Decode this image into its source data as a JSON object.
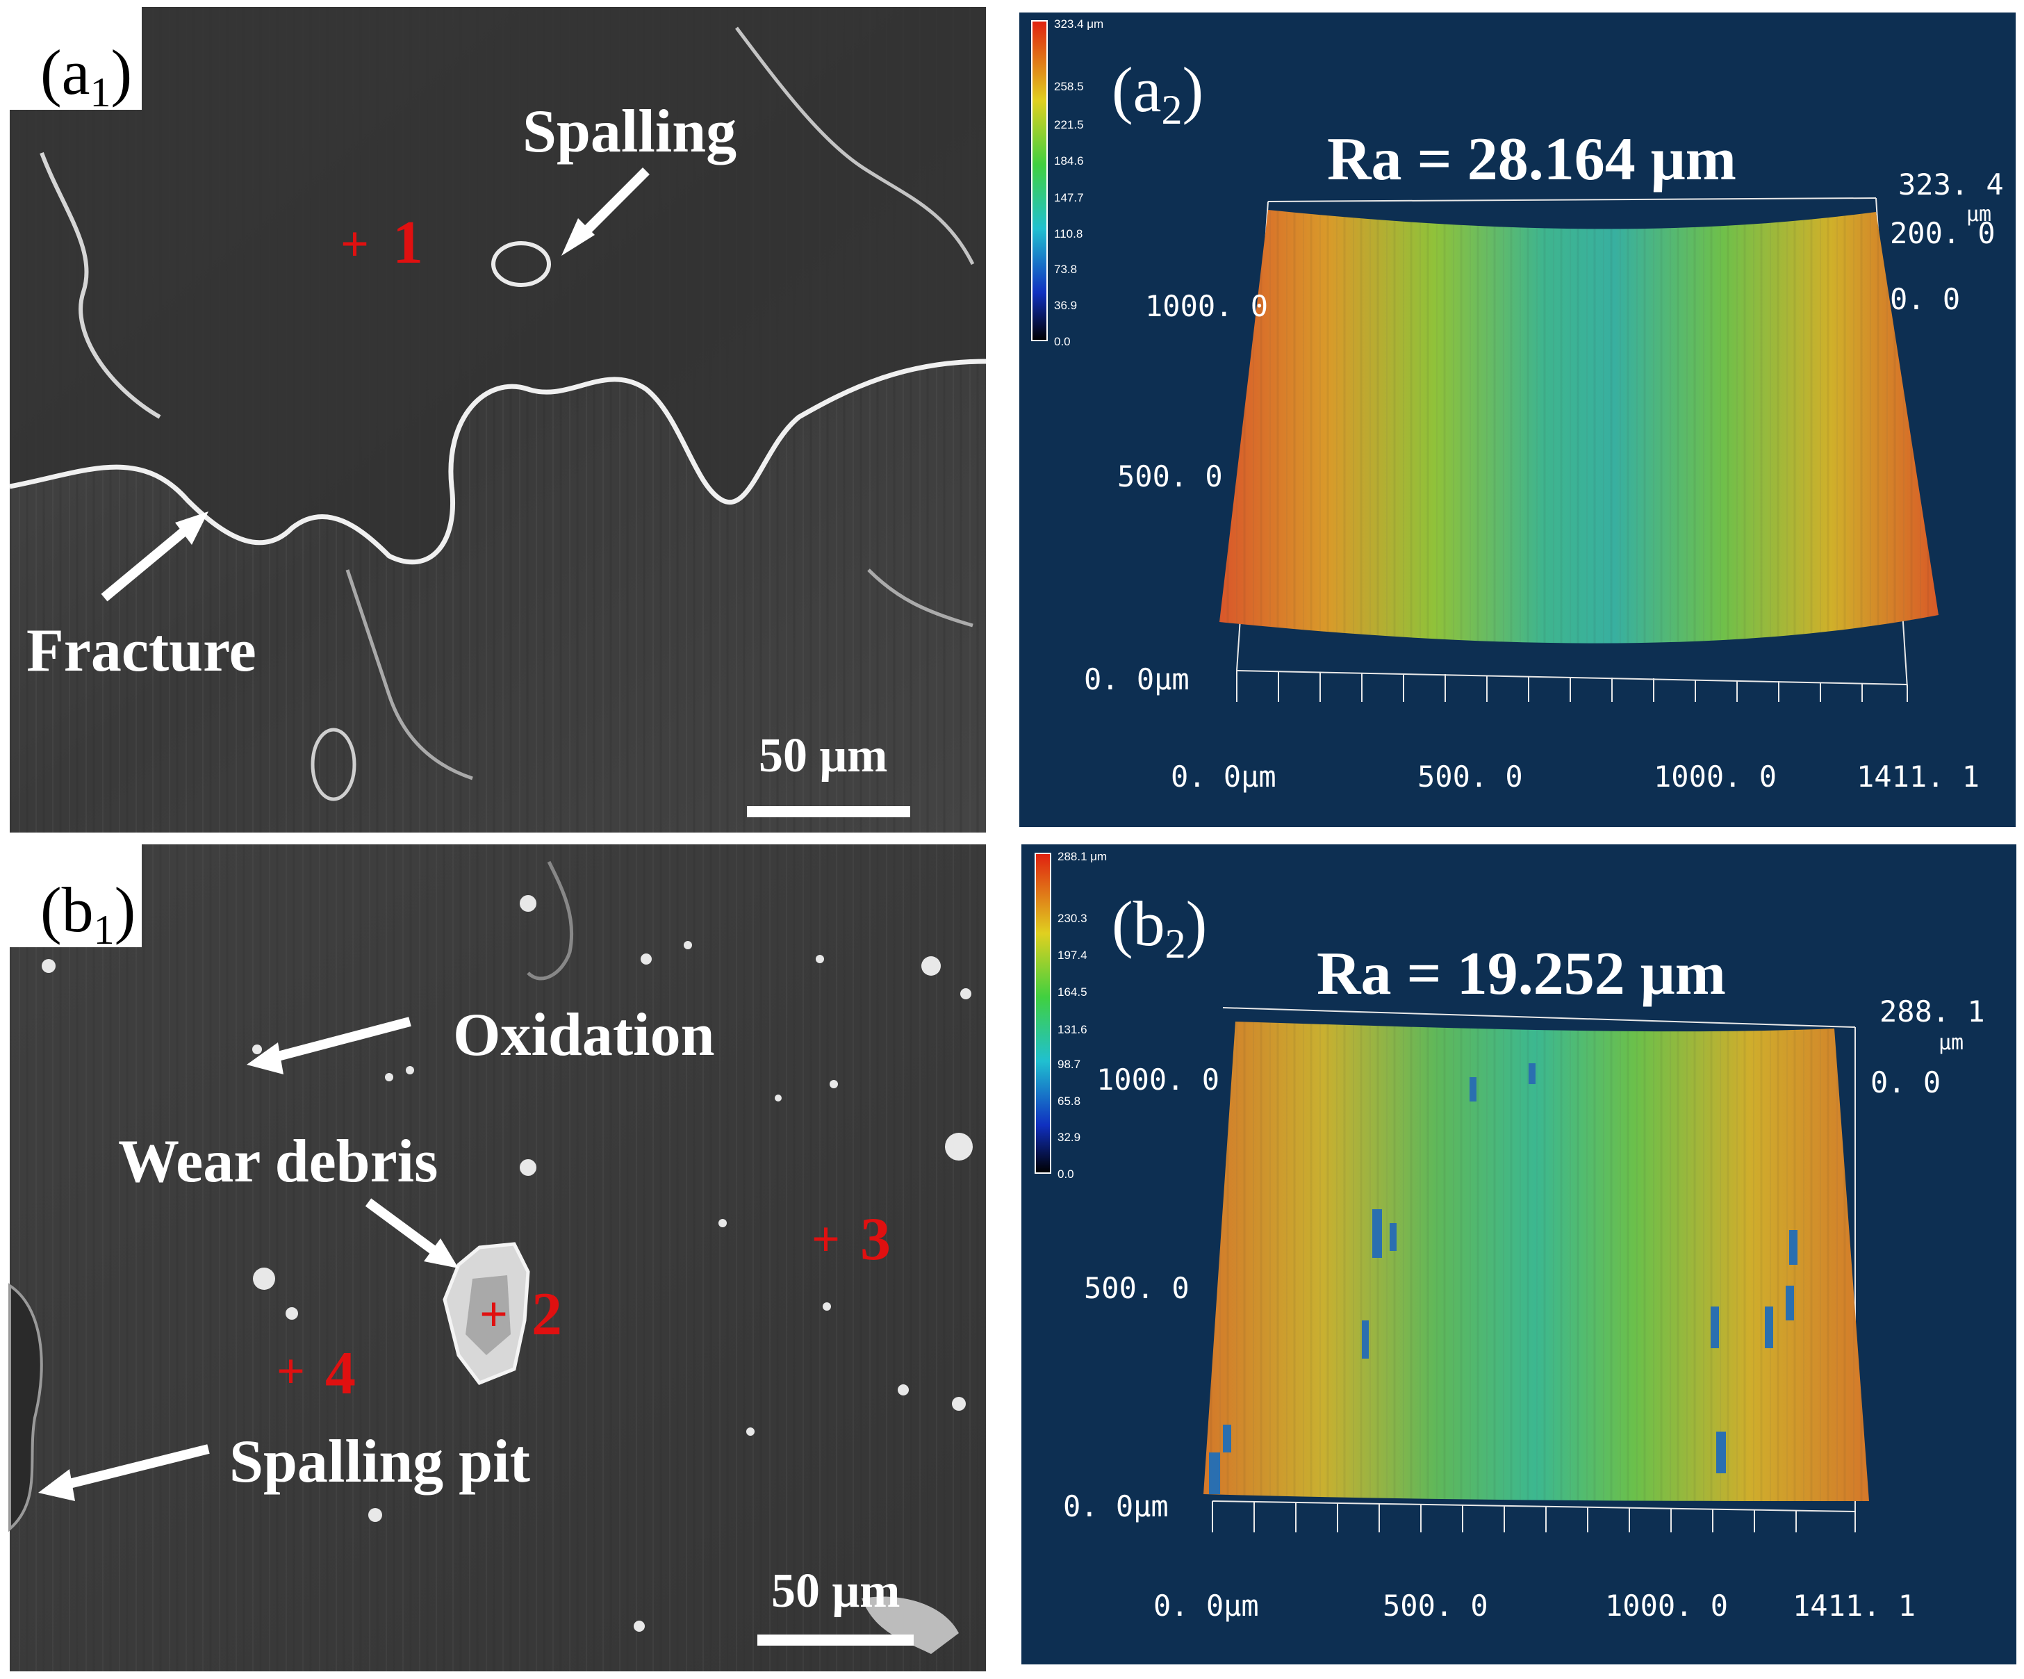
{
  "panels": {
    "a1": {
      "label_main": "(a",
      "label_sub": "1",
      "label_close": ")",
      "annotations": [
        "Spalling",
        "Fracture"
      ],
      "points": [
        {
          "mark": "+",
          "num": "1"
        }
      ],
      "scale_bar": "50 μm"
    },
    "a2": {
      "label_main": "(a",
      "label_sub": "2",
      "label_close": ")",
      "ra": "Ra = 28.164 μm",
      "colorbar_ticks": [
        "323.4 μm",
        "258.5",
        "221.5",
        "184.6",
        "147.7",
        "110.8",
        "73.8",
        "36.9",
        "0.0"
      ],
      "y_ticks": [
        "1000. 0",
        "500. 0",
        "0. 0μm"
      ],
      "x_ticks": [
        "0. 0μm",
        "500. 0",
        "1000. 0",
        "1411. 1"
      ],
      "z_ticks": [
        "323. 4",
        "μm",
        "200. 0",
        "0. 0"
      ]
    },
    "b1": {
      "label_main": "(b",
      "label_sub": "1",
      "label_close": ")",
      "annotations": [
        "Oxidation",
        "Wear debris",
        "Spalling pit"
      ],
      "points": [
        {
          "mark": "+",
          "num": "2"
        },
        {
          "mark": "+",
          "num": "3"
        },
        {
          "mark": "+",
          "num": "4"
        }
      ],
      "scale_bar": "50 μm"
    },
    "b2": {
      "label_main": "(b",
      "label_sub": "2",
      "label_close": ")",
      "ra": "Ra = 19.252 μm",
      "colorbar_ticks": [
        "288.1 μm",
        "230.3",
        "197.4",
        "164.5",
        "131.6",
        "98.7",
        "65.8",
        "32.9",
        "0.0"
      ],
      "y_ticks": [
        "1000. 0",
        "500. 0",
        "0. 0μm"
      ],
      "x_ticks": [
        "0. 0μm",
        "500. 0",
        "1000. 0",
        "1411. 1"
      ],
      "z_ticks": [
        "288. 1",
        "μm",
        "0. 0"
      ]
    }
  },
  "colors": {
    "sem_background": "#3a3a3a",
    "profilometer_background": "#0d2f52",
    "marker_red": "#e01010",
    "annotation_white": "#ffffff"
  }
}
